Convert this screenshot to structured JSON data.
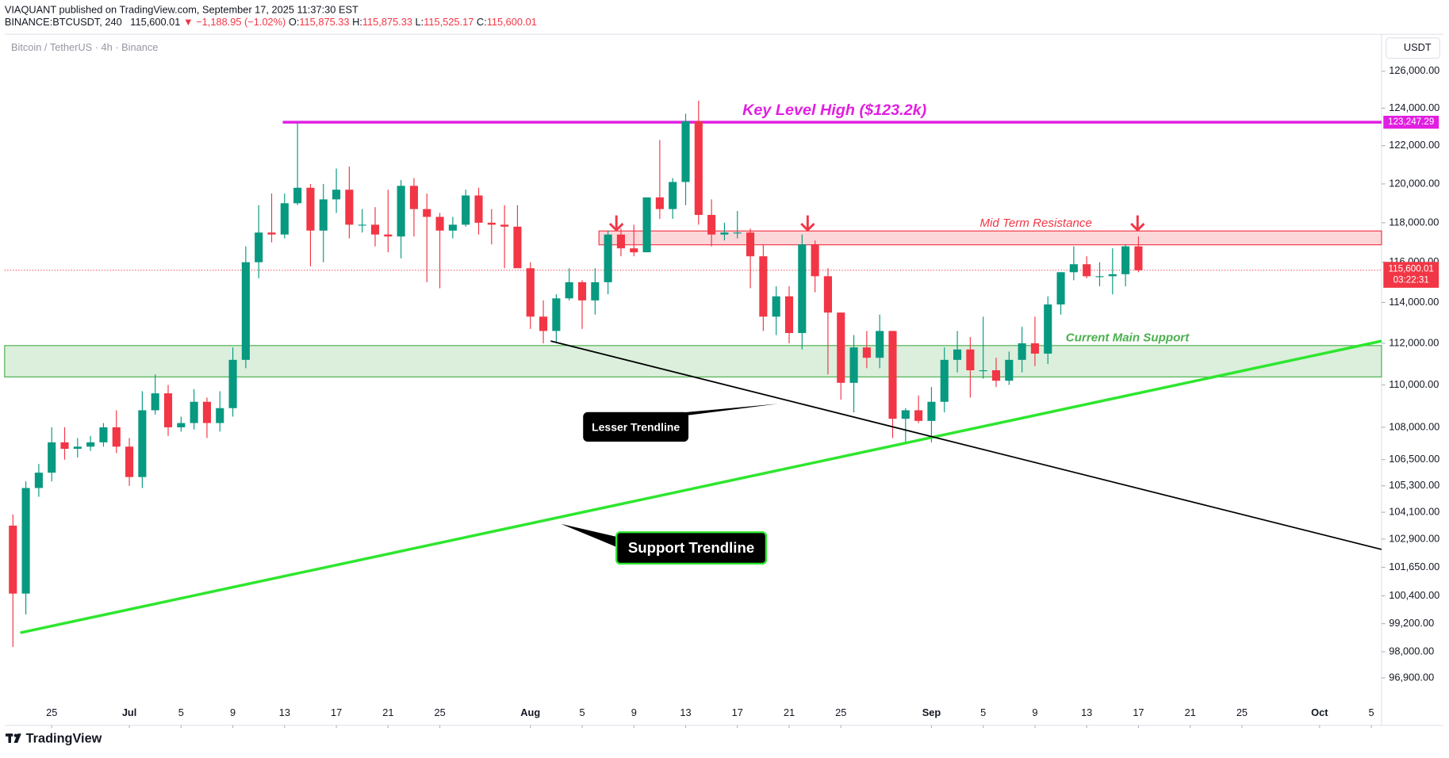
{
  "header": {
    "publisher": "VIAQUANT published on TradingView.com, September 17, 2025 11:37:30 EST",
    "symbol": "BINANCE:BTCUSDT, 240",
    "last": "115,600.01",
    "change": "▼ −1,188.95 (−1.02%)",
    "ohlc": [
      {
        "label": "O:",
        "value": "115,875.33"
      },
      {
        "label": "H:",
        "value": "115,875.33"
      },
      {
        "label": "L:",
        "value": "115,525.17"
      },
      {
        "label": "C:",
        "value": "115,600.01"
      }
    ]
  },
  "legend": "Bitcoin / TetherUS · 4h · Binance",
  "currency": "USDT",
  "brand": "TradingView",
  "chart_data": {
    "type": "candlestick",
    "log_scale": true,
    "up_color": "#089981",
    "down_color": "#f23645",
    "xlim": [
      -3.64,
      102.79
    ],
    "ylim": [
      94930,
      128030
    ],
    "xticks": [
      {
        "value": 0,
        "label": "25"
      },
      {
        "value": 6,
        "label": "Jul"
      },
      {
        "value": 10,
        "label": "5"
      },
      {
        "value": 14,
        "label": "9"
      },
      {
        "value": 18,
        "label": "13"
      },
      {
        "value": 22,
        "label": "17"
      },
      {
        "value": 26,
        "label": "21"
      },
      {
        "value": 30,
        "label": "25"
      },
      {
        "value": 37,
        "label": "Aug"
      },
      {
        "value": 41,
        "label": "5"
      },
      {
        "value": 45,
        "label": "9"
      },
      {
        "value": 49,
        "label": "13"
      },
      {
        "value": 53,
        "label": "17"
      },
      {
        "value": 57,
        "label": "21"
      },
      {
        "value": 61,
        "label": "25"
      },
      {
        "value": 68,
        "label": "Sep"
      },
      {
        "value": 72,
        "label": "5"
      },
      {
        "value": 76,
        "label": "9"
      },
      {
        "value": 80,
        "label": "13"
      },
      {
        "value": 84,
        "label": "17"
      },
      {
        "value": 88,
        "label": "21"
      },
      {
        "value": 92,
        "label": "25"
      },
      {
        "value": 98,
        "label": "Oct"
      },
      {
        "value": 102,
        "label": "5"
      }
    ],
    "yticks": [
      {
        "value": 126000,
        "label": "126,000.00"
      },
      {
        "value": 124000,
        "label": "124,000.00"
      },
      {
        "value": 122000,
        "label": "122,000.00"
      },
      {
        "value": 120000,
        "label": "120,000.00"
      },
      {
        "value": 118000,
        "label": "118,000.00"
      },
      {
        "value": 116000,
        "label": "116,000.00"
      },
      {
        "value": 114000,
        "label": "114,000.00"
      },
      {
        "value": 112000,
        "label": "112,000.00"
      },
      {
        "value": 110000,
        "label": "110,000.00"
      },
      {
        "value": 108000,
        "label": "108,000.00"
      },
      {
        "value": 106500,
        "label": "106,500.00"
      },
      {
        "value": 105300,
        "label": "105,300.00"
      },
      {
        "value": 104100,
        "label": "104,100.00"
      },
      {
        "value": 102900,
        "label": "102,900.00"
      },
      {
        "value": 101650,
        "label": "101,650.00"
      },
      {
        "value": 100400,
        "label": "100,400.00"
      },
      {
        "value": 99200,
        "label": "99,200.00"
      },
      {
        "value": 98000,
        "label": "98,000.00"
      },
      {
        "value": 96900,
        "label": "96,900.00"
      }
    ],
    "x": [
      -3,
      -2,
      -1,
      0,
      1,
      2,
      3,
      4,
      5,
      6,
      7,
      8,
      9,
      10,
      11,
      12,
      13,
      14,
      15,
      16,
      17,
      18,
      19,
      20,
      21,
      22,
      23,
      24,
      25,
      26,
      27,
      28,
      29,
      30,
      31,
      32,
      33,
      34,
      35,
      36,
      37,
      38,
      39,
      40,
      41,
      42,
      43,
      44,
      45,
      46,
      47,
      48,
      49,
      50,
      51,
      52,
      53,
      54,
      55,
      56,
      57,
      58,
      59,
      60,
      61,
      62,
      63,
      64,
      65,
      66,
      67,
      68,
      69,
      70,
      71,
      72,
      73,
      74,
      75,
      76,
      77,
      78,
      79,
      80,
      81,
      82,
      83,
      84
    ],
    "open": [
      103500,
      100500,
      105200,
      105900,
      107300,
      107000,
      107100,
      107300,
      108000,
      107100,
      105700,
      108800,
      109600,
      108000,
      108200,
      109200,
      108200,
      108900,
      111200,
      116000,
      117500,
      117400,
      119000,
      119800,
      117600,
      119200,
      119700,
      117900,
      117900,
      117400,
      117300,
      119900,
      118700,
      118300,
      117600,
      117900,
      119400,
      118000,
      117900,
      117800,
      115700,
      113300,
      112600,
      114200,
      115000,
      114100,
      115000,
      117400,
      116700,
      116500,
      119300,
      118700,
      120100,
      123300,
      118400,
      117400,
      117500,
      117500,
      116300,
      113300,
      114300,
      112500,
      116900,
      115300,
      113500,
      110100,
      111800,
      111300,
      112600,
      108400,
      108800,
      108300,
      109200,
      111200,
      111700,
      110700,
      110700,
      110200,
      111200,
      112000,
      111500,
      113900,
      115500,
      115900,
      115300,
      115300,
      115400,
      116800
    ],
    "high": [
      104000,
      105500,
      106300,
      108000,
      108000,
      107500,
      107600,
      108200,
      108800,
      107500,
      109700,
      110500,
      110000,
      108500,
      109800,
      109400,
      109700,
      111800,
      116800,
      118900,
      119500,
      119500,
      123200,
      120000,
      120000,
      120800,
      120900,
      118700,
      118800,
      119700,
      120200,
      120300,
      119500,
      118500,
      118300,
      119700,
      119800,
      118700,
      118900,
      118900,
      116000,
      114100,
      114400,
      115700,
      115100,
      115700,
      117600,
      117700,
      117900,
      119300,
      122300,
      120300,
      123700,
      124400,
      119200,
      118000,
      118600,
      117700,
      116900,
      114800,
      114800,
      117400,
      117100,
      115700,
      113500,
      112400,
      112600,
      113400,
      112600,
      108900,
      109500,
      109900,
      111800,
      112600,
      112300,
      113300,
      111300,
      111600,
      112800,
      113300,
      114300,
      115500,
      116800,
      116300,
      116000,
      116700,
      116900,
      117300
    ],
    "low": [
      98200,
      99600,
      104800,
      105500,
      106500,
      106600,
      106900,
      107100,
      106800,
      105300,
      105200,
      108600,
      107600,
      107800,
      107900,
      107500,
      107800,
      108500,
      110800,
      115200,
      117000,
      117200,
      118900,
      115800,
      116000,
      118500,
      117200,
      117500,
      116800,
      116500,
      116200,
      117300,
      115000,
      114700,
      117200,
      117800,
      117400,
      116900,
      115700,
      115800,
      112700,
      112000,
      112000,
      114100,
      112700,
      113400,
      114400,
      116300,
      116300,
      116600,
      118200,
      118200,
      118900,
      117900,
      116800,
      117100,
      117200,
      114700,
      112600,
      112400,
      112000,
      111700,
      114500,
      110500,
      109300,
      108700,
      110800,
      110800,
      107500,
      107300,
      108200,
      107300,
      108700,
      110600,
      109400,
      110300,
      109900,
      110000,
      110600,
      110900,
      111000,
      113400,
      115100,
      115200,
      114800,
      114400,
      114800,
      115500
    ],
    "close": [
      100500,
      105200,
      105900,
      107300,
      107000,
      107100,
      107300,
      108000,
      107100,
      105700,
      108800,
      109600,
      108000,
      108200,
      109200,
      108200,
      108900,
      111200,
      116000,
      117500,
      117400,
      119000,
      119800,
      117600,
      119200,
      119700,
      117900,
      117900,
      117400,
      117300,
      119900,
      118700,
      118300,
      117600,
      117900,
      119400,
      118000,
      117900,
      117800,
      115700,
      113300,
      112600,
      114200,
      115000,
      114100,
      115000,
      117400,
      116700,
      116500,
      119300,
      118700,
      120100,
      123300,
      118400,
      117400,
      117500,
      117500,
      116300,
      113300,
      114300,
      112500,
      116900,
      115300,
      113500,
      110100,
      111800,
      111300,
      112600,
      108400,
      108800,
      108300,
      109200,
      111200,
      111700,
      110700,
      110700,
      110200,
      111200,
      112000,
      111500,
      113900,
      115500,
      115900,
      115300,
      115300,
      115400,
      116800,
      115600
    ],
    "key_level": {
      "text": "Key Level High ($123.2k)",
      "value": 123247.29,
      "value_label": "123,247.29",
      "x_start": 17.86,
      "color": "#e11fe1"
    },
    "zones": [
      {
        "text": "Mid Term Resistance",
        "range": [
          116880,
          117580
        ],
        "x_start": 42.3,
        "color": "#f23645"
      },
      {
        "text": "Current Main Support",
        "range": [
          110380,
          111890
        ],
        "x_start": -3.64,
        "color": "#4caf50"
      }
    ],
    "trendlines": [
      {
        "text": "Support Trendline",
        "x": [
          -2.43,
          102.79
        ],
        "values": [
          98810,
          112110
        ],
        "color": "#2ee62e"
      },
      {
        "text": "Lesser Trendline",
        "x": [
          38.57,
          102.79
        ],
        "values": [
          112110,
          102440
        ],
        "color": "#000000"
      }
    ],
    "last_price": {
      "value": 115600.01,
      "label": "115,600.01",
      "countdown": "03:22:31",
      "color": "#f23645"
    }
  }
}
